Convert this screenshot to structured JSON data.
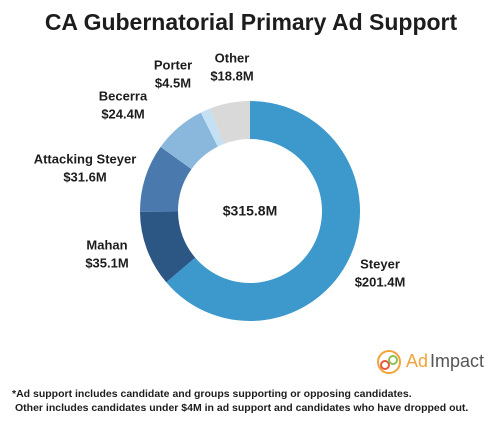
{
  "chart_data": {
    "type": "donut",
    "title": "CA Gubernatorial Primary Ad Support",
    "categories": [
      "Steyer",
      "Mahan",
      "Attacking Steyer",
      "Becerra",
      "Porter",
      "Other"
    ],
    "values": [
      201.4,
      35.1,
      31.6,
      24.4,
      4.5,
      18.8
    ],
    "value_labels": [
      "$201.4M",
      "$35.1M",
      "$31.6M",
      "$24.4M",
      "$4.5M",
      "$18.8M"
    ],
    "colors": [
      "#3d99cc",
      "#2c5684",
      "#4a7aad",
      "#8ab8dc",
      "#c4e0f4",
      "#d9d9d9"
    ],
    "center_label": "$315.8M",
    "logo": {
      "part1": "Ad",
      "part2": "Impact"
    },
    "footnote": [
      "*Ad support includes candidate and groups supporting or opposing candidates.",
      "Other includes candidates under $4M in ad support and candidates who have dropped out."
    ]
  }
}
